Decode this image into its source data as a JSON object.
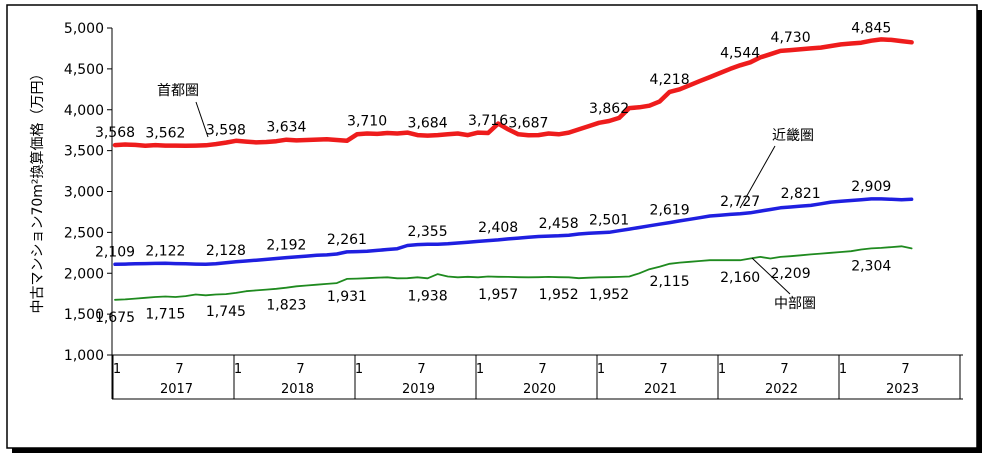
{
  "chart_data": {
    "type": "line",
    "ylabel": "中古マンション70m²換算価格（万円）",
    "ylim": [
      1000,
      5000
    ],
    "yticks": [
      "1,000",
      "1,500",
      "2,000",
      "2,500",
      "3,000",
      "3,500",
      "4,000",
      "4,500",
      "5,000"
    ],
    "month_ticks": [
      "1",
      "7",
      "1",
      "7",
      "1",
      "7",
      "1",
      "7",
      "1",
      "7",
      "1",
      "7",
      "1",
      "7"
    ],
    "years": [
      "2017",
      "2018",
      "2019",
      "2020",
      "2021",
      "2022",
      "2023"
    ],
    "grid": false,
    "series": [
      {
        "name": "首都圏",
        "color": "#ee1c1c",
        "values": [
          3568,
          3575,
          3570,
          3560,
          3568,
          3562,
          3562,
          3560,
          3562,
          3565,
          3580,
          3598,
          3620,
          3610,
          3600,
          3605,
          3615,
          3634,
          3625,
          3630,
          3635,
          3640,
          3630,
          3620,
          3700,
          3710,
          3705,
          3715,
          3710,
          3720,
          3690,
          3684,
          3690,
          3700,
          3710,
          3690,
          3720,
          3716,
          3830,
          3760,
          3700,
          3687,
          3690,
          3710,
          3700,
          3720,
          3760,
          3800,
          3840,
          3862,
          3900,
          4020,
          4030,
          4050,
          4100,
          4218,
          4250,
          4300,
          4350,
          4400,
          4450,
          4500,
          4544,
          4580,
          4640,
          4680,
          4720,
          4730,
          4740,
          4750,
          4760,
          4780,
          4800,
          4810,
          4820,
          4845,
          4860,
          4855,
          4840,
          4825
        ]
      },
      {
        "name": "近畿圏",
        "color": "#1f1fe0",
        "values": [
          2109,
          2112,
          2115,
          2118,
          2120,
          2122,
          2118,
          2115,
          2112,
          2110,
          2115,
          2128,
          2140,
          2150,
          2160,
          2170,
          2180,
          2192,
          2200,
          2210,
          2220,
          2225,
          2235,
          2261,
          2265,
          2268,
          2280,
          2290,
          2300,
          2340,
          2350,
          2355,
          2355,
          2360,
          2370,
          2380,
          2390,
          2400,
          2408,
          2420,
          2430,
          2440,
          2450,
          2455,
          2458,
          2465,
          2480,
          2490,
          2495,
          2501,
          2520,
          2540,
          2560,
          2580,
          2600,
          2619,
          2640,
          2660,
          2680,
          2700,
          2710,
          2720,
          2727,
          2740,
          2760,
          2780,
          2800,
          2810,
          2821,
          2830,
          2850,
          2870,
          2880,
          2890,
          2900,
          2909,
          2910,
          2905,
          2900,
          2905
        ]
      },
      {
        "name": "中部圏",
        "color": "#1f8a1f",
        "values": [
          1675,
          1680,
          1690,
          1700,
          1710,
          1715,
          1710,
          1720,
          1740,
          1730,
          1740,
          1745,
          1760,
          1780,
          1790,
          1800,
          1810,
          1823,
          1840,
          1850,
          1860,
          1870,
          1880,
          1931,
          1935,
          1940,
          1945,
          1950,
          1938,
          1940,
          1950,
          1938,
          1990,
          1960,
          1950,
          1957,
          1950,
          1960,
          1957,
          1955,
          1952,
          1950,
          1952,
          1955,
          1952,
          1950,
          1940,
          1945,
          1950,
          1952,
          1955,
          1960,
          2000,
          2050,
          2080,
          2115,
          2130,
          2140,
          2150,
          2160,
          2160,
          2160,
          2160,
          2180,
          2200,
          2180,
          2200,
          2209,
          2220,
          2230,
          2240,
          2250,
          2260,
          2270,
          2290,
          2304,
          2310,
          2320,
          2330,
          2304
        ]
      }
    ],
    "annotations": [
      {
        "series": 0,
        "text": "3,568",
        "i": 0
      },
      {
        "series": 0,
        "text": "3,562",
        "i": 5
      },
      {
        "series": 0,
        "text": "3,598",
        "i": 11
      },
      {
        "series": 0,
        "text": "3,634",
        "i": 17
      },
      {
        "series": 0,
        "text": "3,710",
        "i": 25
      },
      {
        "series": 0,
        "text": "3,684",
        "i": 31
      },
      {
        "series": 0,
        "text": "3,716",
        "i": 37
      },
      {
        "series": 0,
        "text": "3,687",
        "i": 41
      },
      {
        "series": 0,
        "text": "3,862",
        "i": 49
      },
      {
        "series": 0,
        "text": "4,218",
        "i": 55
      },
      {
        "series": 0,
        "text": "4,544",
        "i": 62
      },
      {
        "series": 0,
        "text": "4,730",
        "i": 67
      },
      {
        "series": 0,
        "text": "4,845",
        "i": 75
      },
      {
        "series": 1,
        "text": "2,109",
        "i": 0
      },
      {
        "series": 1,
        "text": "2,122",
        "i": 5
      },
      {
        "series": 1,
        "text": "2,128",
        "i": 11
      },
      {
        "series": 1,
        "text": "2,192",
        "i": 17
      },
      {
        "series": 1,
        "text": "2,261",
        "i": 23
      },
      {
        "series": 1,
        "text": "2,355",
        "i": 31
      },
      {
        "series": 1,
        "text": "2,408",
        "i": 38
      },
      {
        "series": 1,
        "text": "2,458",
        "i": 44
      },
      {
        "series": 1,
        "text": "2,501",
        "i": 49
      },
      {
        "series": 1,
        "text": "2,619",
        "i": 55
      },
      {
        "series": 1,
        "text": "2,727",
        "i": 62
      },
      {
        "series": 1,
        "text": "2,821",
        "i": 68
      },
      {
        "series": 1,
        "text": "2,909",
        "i": 75
      },
      {
        "series": 2,
        "text": "1,675",
        "i": 0
      },
      {
        "series": 2,
        "text": "1,715",
        "i": 5
      },
      {
        "series": 2,
        "text": "1,745",
        "i": 11
      },
      {
        "series": 2,
        "text": "1,823",
        "i": 17
      },
      {
        "series": 2,
        "text": "1,931",
        "i": 23
      },
      {
        "series": 2,
        "text": "1,938",
        "i": 31
      },
      {
        "series": 2,
        "text": "1,957",
        "i": 38
      },
      {
        "series": 2,
        "text": "1,952",
        "i": 44
      },
      {
        "series": 2,
        "text": "1,952",
        "i": 49
      },
      {
        "series": 2,
        "text": "2,115",
        "i": 55
      },
      {
        "series": 2,
        "text": "2,160",
        "i": 62
      },
      {
        "series": 2,
        "text": "2,209",
        "i": 67
      },
      {
        "series": 2,
        "text": "2,304",
        "i": 75
      }
    ],
    "legend": [
      "首都圏",
      "近畿圏",
      "中部圏"
    ]
  }
}
